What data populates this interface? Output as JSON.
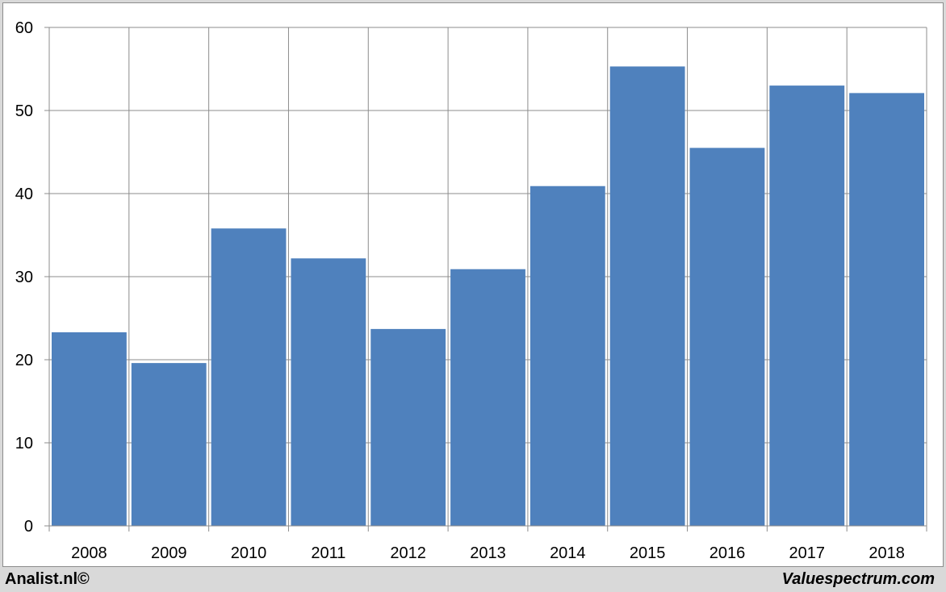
{
  "chart_data": {
    "type": "bar",
    "title": "",
    "xlabel": "",
    "ylabel": "",
    "categories": [
      "2008",
      "2009",
      "2010",
      "2011",
      "2012",
      "2013",
      "2014",
      "2015",
      "2016",
      "2017",
      "2018"
    ],
    "values": [
      23.3,
      19.6,
      35.8,
      32.2,
      23.7,
      30.9,
      40.9,
      55.3,
      45.5,
      53.0,
      52.1
    ],
    "ylim": [
      0,
      60
    ],
    "yticks": [
      0,
      10,
      20,
      30,
      40,
      50,
      60
    ],
    "grid": true,
    "bar_color": "#4f81bd"
  },
  "footer": {
    "left": "Analist.nl©",
    "right": "Valuespectrum.com"
  }
}
